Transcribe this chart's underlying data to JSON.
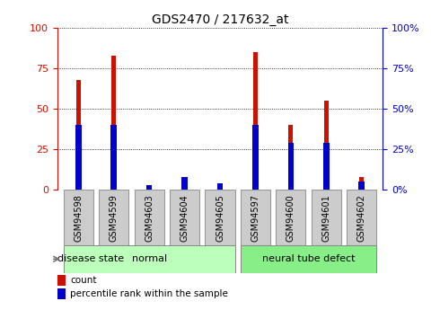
{
  "title": "GDS2470 / 217632_at",
  "samples": [
    "GSM94598",
    "GSM94599",
    "GSM94603",
    "GSM94604",
    "GSM94605",
    "GSM94597",
    "GSM94600",
    "GSM94601",
    "GSM94602"
  ],
  "red_values": [
    68,
    83,
    0,
    3,
    0,
    85,
    40,
    55,
    8
  ],
  "blue_values": [
    40,
    40,
    3,
    8,
    4,
    40,
    29,
    29,
    5
  ],
  "groups": [
    {
      "label": "normal",
      "start": 0,
      "end": 5
    },
    {
      "label": "neural tube defect",
      "start": 5,
      "end": 9
    }
  ],
  "disease_state_label": "disease state",
  "legend_items": [
    {
      "label": "count",
      "color": "#cc1100"
    },
    {
      "label": "percentile rank within the sample",
      "color": "#0000cc"
    }
  ],
  "yticks": [
    0,
    25,
    50,
    75,
    100
  ],
  "red_color": "#cc1100",
  "blue_color": "#0000cc",
  "red_bar_width": 0.12,
  "blue_bar_width": 0.12,
  "group_normal_color": "#bbffbb",
  "group_ntd_color": "#88ee88",
  "label_box_color": "#cccccc",
  "label_box_edge": "#999999"
}
